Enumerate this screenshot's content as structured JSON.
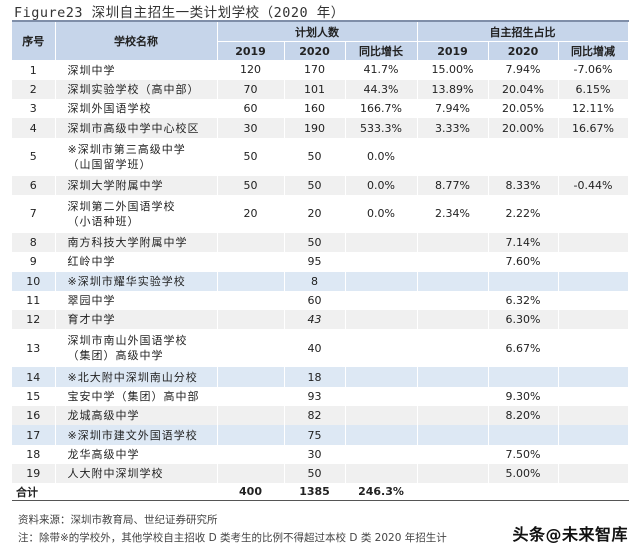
{
  "title": "Figure23 深圳自主招生一类计划学校（2020 年）",
  "header": {
    "seq": "序号",
    "school": "学校名称",
    "plan_group": "计划人数",
    "ratio_group": "自主招生占比",
    "plan_2019": "2019",
    "plan_2020": "2020",
    "plan_yoy": "同比增长",
    "ratio_2019": "2019",
    "ratio_2020": "2020",
    "ratio_yoy": "同比增减"
  },
  "rows": [
    {
      "no": "1",
      "name": "深圳中学",
      "p2019": "120",
      "p2020": "170",
      "pyoy": "41.7%",
      "r2019": "15.00%",
      "r2020": "7.94%",
      "ryoy": "-7.06%"
    },
    {
      "no": "2",
      "name": "深圳实验学校（高中部）",
      "p2019": "70",
      "p2020": "101",
      "pyoy": "44.3%",
      "r2019": "13.89%",
      "r2020": "20.04%",
      "ryoy": "6.15%"
    },
    {
      "no": "3",
      "name": "深圳外国语学校",
      "p2019": "60",
      "p2020": "160",
      "pyoy": "166.7%",
      "r2019": "7.94%",
      "r2020": "20.05%",
      "ryoy": "12.11%"
    },
    {
      "no": "4",
      "name": "深圳市高级中学中心校区",
      "p2019": "30",
      "p2020": "190",
      "pyoy": "533.3%",
      "r2019": "3.33%",
      "r2020": "20.00%",
      "ryoy": "16.67%"
    },
    {
      "no": "5",
      "name": "※深圳市第三高级中学",
      "name2": "（山国留学班）",
      "p2019": "50",
      "p2020": "50",
      "pyoy": "0.0%",
      "r2019": "",
      "r2020": "",
      "ryoy": ""
    },
    {
      "no": "6",
      "name": "深圳大学附属中学",
      "p2019": "50",
      "p2020": "50",
      "pyoy": "0.0%",
      "r2019": "8.77%",
      "r2020": "8.33%",
      "ryoy": "-0.44%"
    },
    {
      "no": "7",
      "name": "深圳第二外国语学校",
      "name2": "（小语种班）",
      "p2019": "20",
      "p2020": "20",
      "pyoy": "0.0%",
      "r2019": "2.34%",
      "r2020": "2.22%",
      "ryoy": ""
    },
    {
      "no": "8",
      "name": "南方科技大学附属中学",
      "p2019": "",
      "p2020": "50",
      "pyoy": "",
      "r2019": "",
      "r2020": "7.14%",
      "ryoy": ""
    },
    {
      "no": "9",
      "name": "红岭中学",
      "p2019": "",
      "p2020": "95",
      "pyoy": "",
      "r2019": "",
      "r2020": "7.60%",
      "ryoy": ""
    },
    {
      "no": "10",
      "name": "※深圳市耀华实验学校",
      "p2019": "",
      "p2020": "8",
      "pyoy": "",
      "r2019": "",
      "r2020": "",
      "ryoy": ""
    },
    {
      "no": "11",
      "name": "翠园中学",
      "p2019": "",
      "p2020": "60",
      "pyoy": "",
      "r2019": "",
      "r2020": "6.32%",
      "ryoy": ""
    },
    {
      "no": "12",
      "name": "育才中学",
      "p2019": "",
      "p2020": "43",
      "pyoy": "",
      "r2019": "",
      "r2020": "6.30%",
      "ryoy": ""
    },
    {
      "no": "13",
      "name": "深圳市南山外国语学校",
      "name2": "（集团）高级中学",
      "p2019": "",
      "p2020": "40",
      "pyoy": "",
      "r2019": "",
      "r2020": "6.67%",
      "ryoy": ""
    },
    {
      "no": "14",
      "name": "※北大附中深圳南山分校",
      "p2019": "",
      "p2020": "18",
      "pyoy": "",
      "r2019": "",
      "r2020": "",
      "ryoy": ""
    },
    {
      "no": "15",
      "name": "宝安中学（集团）高中部",
      "p2019": "",
      "p2020": "93",
      "pyoy": "",
      "r2019": "",
      "r2020": "9.30%",
      "ryoy": ""
    },
    {
      "no": "16",
      "name": "龙城高级中学",
      "p2019": "",
      "p2020": "82",
      "pyoy": "",
      "r2019": "",
      "r2020": "8.20%",
      "ryoy": ""
    },
    {
      "no": "17",
      "name": "※深圳市建文外国语学校",
      "p2019": "",
      "p2020": "75",
      "pyoy": "",
      "r2019": "",
      "r2020": "",
      "ryoy": ""
    },
    {
      "no": "18",
      "name": "龙华高级中学",
      "p2019": "",
      "p2020": "30",
      "pyoy": "",
      "r2019": "",
      "r2020": "7.50%",
      "ryoy": ""
    },
    {
      "no": "19",
      "name": "人大附中深圳学校",
      "p2019": "",
      "p2020": "50",
      "pyoy": "",
      "r2019": "",
      "r2020": "5.00%",
      "ryoy": ""
    }
  ],
  "total": {
    "label": "合计",
    "p2019": "400",
    "p2020": "1385",
    "pyoy": "246.3%",
    "r2019": "",
    "r2020": "",
    "ryoy": ""
  },
  "footer": {
    "source": "资料来源：深圳市教育局、世纪证券研究所",
    "note": "注：除带※的学校外，其他学校自主招收 D 类考生的比例不得超过本校 D 类 2020 年招生计",
    "watermark": "头条@未来智库"
  },
  "colors": {
    "header_bg": "#c6d5ea",
    "stripe_gray": "#f0f0f0",
    "stripe_blue": "#dde8f4"
  }
}
